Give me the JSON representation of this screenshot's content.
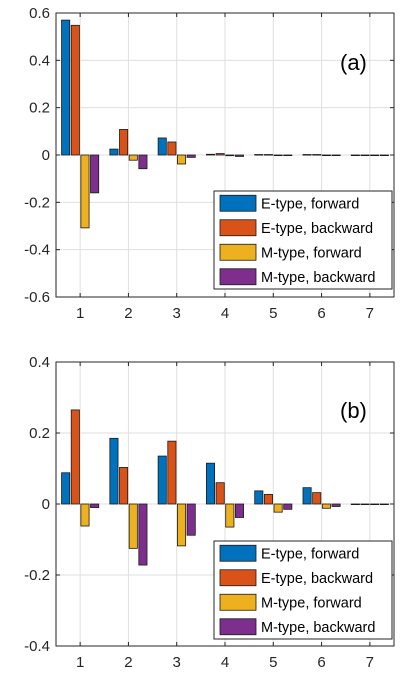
{
  "chart_data": [
    {
      "type": "bar",
      "panel_label": "(a)",
      "categories": [
        "1",
        "2",
        "3",
        "4",
        "5",
        "6",
        "7"
      ],
      "ylim": [
        -0.6,
        0.6
      ],
      "yticks": [
        "-0.6",
        "-0.4",
        "-0.2",
        "0",
        "0.2",
        "0.4",
        "0.6"
      ],
      "ytick_values": [
        -0.6,
        -0.4,
        -0.2,
        0,
        0.2,
        0.4,
        0.6
      ],
      "grid": true,
      "legend_position": "bottom-right",
      "series": [
        {
          "name": "E-type, forward",
          "color": "#0072BD",
          "values": [
            0.57,
            0.025,
            0.072,
            0.003,
            0.002,
            0.002,
            0.0
          ]
        },
        {
          "name": "E-type, backward",
          "color": "#D95319",
          "values": [
            0.548,
            0.108,
            0.055,
            0.006,
            0.002,
            0.002,
            0.0
          ]
        },
        {
          "name": "M-type, forward",
          "color": "#EDB120",
          "values": [
            -0.308,
            -0.022,
            -0.038,
            -0.003,
            -0.001,
            -0.001,
            0.0
          ]
        },
        {
          "name": "M-type, backward",
          "color": "#7E2F8E",
          "values": [
            -0.16,
            -0.058,
            -0.01,
            -0.006,
            -0.001,
            -0.001,
            0.0
          ]
        }
      ],
      "title": "",
      "xlabel": "",
      "ylabel": ""
    },
    {
      "type": "bar",
      "panel_label": "(b)",
      "categories": [
        "1",
        "2",
        "3",
        "4",
        "5",
        "6",
        "7"
      ],
      "ylim": [
        -0.4,
        0.4
      ],
      "yticks": [
        "-0.4",
        "-0.2",
        "0",
        "0.2",
        "0.4"
      ],
      "ytick_values": [
        -0.4,
        -0.2,
        0,
        0.2,
        0.4
      ],
      "grid": true,
      "legend_position": "bottom-right",
      "series": [
        {
          "name": "E-type, forward",
          "color": "#0072BD",
          "values": [
            0.088,
            0.185,
            0.135,
            0.115,
            0.037,
            0.046,
            0.0
          ]
        },
        {
          "name": "E-type, backward",
          "color": "#D95319",
          "values": [
            0.265,
            0.103,
            0.177,
            0.06,
            0.027,
            0.032,
            0.0
          ]
        },
        {
          "name": "M-type, forward",
          "color": "#EDB120",
          "values": [
            -0.062,
            -0.125,
            -0.118,
            -0.065,
            -0.023,
            -0.012,
            0.0
          ]
        },
        {
          "name": "M-type, backward",
          "color": "#7E2F8E",
          "values": [
            -0.01,
            -0.172,
            -0.088,
            -0.038,
            -0.015,
            -0.007,
            0.0
          ]
        }
      ],
      "title": "",
      "xlabel": "",
      "ylabel": ""
    }
  ]
}
